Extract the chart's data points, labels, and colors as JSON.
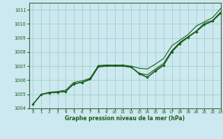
{
  "xlabel": "Graphe pression niveau de la mer (hPa)",
  "bg_color": "#cce8f0",
  "grid_color": "#99ccbb",
  "line_color": "#1a5c1a",
  "xlim": [
    -0.5,
    23
  ],
  "ylim": [
    1004,
    1011.5
  ],
  "yticks": [
    1004,
    1005,
    1006,
    1007,
    1008,
    1009,
    1010,
    1011
  ],
  "xticks": [
    0,
    1,
    2,
    3,
    4,
    5,
    6,
    7,
    8,
    9,
    10,
    11,
    12,
    13,
    14,
    15,
    16,
    17,
    18,
    19,
    20,
    21,
    22,
    23
  ],
  "line_straight": [
    1004.3,
    1005.0,
    1005.15,
    1005.2,
    1005.3,
    1005.85,
    1005.95,
    1006.15,
    1007.05,
    1007.08,
    1007.08,
    1007.08,
    1007.0,
    1006.85,
    1006.8,
    1007.15,
    1007.55,
    1008.45,
    1008.85,
    1009.25,
    1009.85,
    1010.15,
    1010.45,
    1011.1
  ],
  "line_dip_a": [
    1004.3,
    1005.0,
    1005.1,
    1005.15,
    1005.2,
    1005.75,
    1005.85,
    1006.05,
    1006.95,
    1007.0,
    1007.0,
    1007.0,
    1006.92,
    1006.5,
    1006.38,
    1006.8,
    1007.2,
    1008.1,
    1008.7,
    1009.1,
    1009.5,
    1010.05,
    1010.25,
    1010.85
  ],
  "line_dip_b": [
    1004.3,
    1005.0,
    1005.1,
    1005.15,
    1005.2,
    1005.75,
    1005.85,
    1006.05,
    1006.95,
    1007.0,
    1007.0,
    1007.0,
    1006.95,
    1006.5,
    1006.22,
    1006.7,
    1007.1,
    1008.05,
    1008.65,
    1009.05,
    1009.48,
    1009.95,
    1010.2,
    1010.8
  ],
  "line_dip_markers": [
    1004.3,
    1005.0,
    1005.1,
    1005.15,
    1005.2,
    1005.75,
    1005.85,
    1006.1,
    1007.0,
    1007.05,
    1007.05,
    1007.05,
    1006.95,
    1006.45,
    1006.2,
    1006.65,
    1007.05,
    1008.0,
    1008.6,
    1009.05,
    1009.45,
    1009.95,
    1010.2,
    1010.75
  ]
}
